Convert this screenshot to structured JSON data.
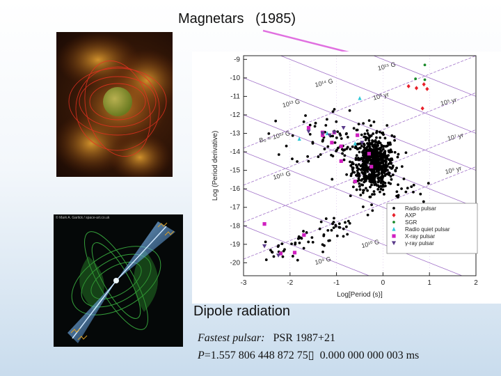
{
  "slide": {
    "title": "Magnetars   (1985)",
    "caption": "Dipole radiation",
    "fastest_label": "Fastest pulsar:",
    "fastest_name": "PSR 1987+21",
    "period_symbol": "P",
    "period_value": "=1.557 806 448 872 75▯",
    "period_error": "0.000 000 000 003 ms",
    "image_credit": "© Mark A. Garlick / space-art.co.uk"
  },
  "chart_data": {
    "type": "scatter",
    "xlabel": "Log[Period (s)]",
    "ylabel": "Log (Period derivative)",
    "xlim": [
      -3,
      2
    ],
    "ylim": [
      -20.7,
      -8.8
    ],
    "x_ticks": [
      "-3",
      "-2",
      "-1",
      "0",
      "1",
      "2"
    ],
    "y_ticks": [
      "-9",
      "-10",
      "-11",
      "-12",
      "-13",
      "-14",
      "-15",
      "-16",
      "-17",
      "-18",
      "-19",
      "-20"
    ],
    "field_lines": [
      {
        "label": "10¹⁵ G",
        "log_B": 15
      },
      {
        "label": "10¹⁴ G",
        "log_B": 14
      },
      {
        "label": "10¹³ G",
        "log_B": 13
      },
      {
        "label": "B₀ = 10¹² G",
        "log_B": 12
      },
      {
        "label": "10¹¹ G",
        "log_B": 11
      },
      {
        "label": "10¹⁰ G",
        "log_B": 10
      },
      {
        "label": "10⁹ G",
        "log_B": 9
      }
    ],
    "age_lines": [
      {
        "label": "10³ yr",
        "log_age": 3
      },
      {
        "label": "10⁵ yr",
        "log_age": 5
      },
      {
        "label": "10⁷ yr",
        "log_age": 7
      },
      {
        "label": "10⁹ yr",
        "log_age": 9
      }
    ],
    "legend_position": "lower-right",
    "series": [
      {
        "name": "Radio pulsar",
        "color": "#000000",
        "marker": "circle",
        "cluster": {
          "x_mean": -0.2,
          "x_sd": 0.22,
          "y_mean": -14.6,
          "y_sd": 0.7,
          "count": 650
        }
      },
      {
        "name": "AXP",
        "color": "#e8202a",
        "marker": "diamond",
        "points": [
          [
            0.55,
            -10.45
          ],
          [
            0.72,
            -10.55
          ],
          [
            0.95,
            -10.6
          ],
          [
            0.88,
            -10.35
          ],
          [
            0.85,
            -11.65
          ]
        ]
      },
      {
        "name": "SGR",
        "color": "#1a8a2a",
        "marker": "circle",
        "points": [
          [
            0.9,
            -9.3
          ],
          [
            0.7,
            -10.05
          ],
          [
            0.9,
            -10.1
          ]
        ]
      },
      {
        "name": "Radio quiet pulsar",
        "color": "#30c8d8",
        "marker": "triangle",
        "points": [
          [
            -0.5,
            -11.1
          ],
          [
            -1.8,
            -13.3
          ],
          [
            -0.6,
            -13.55
          ],
          [
            -1.2,
            -13.0
          ]
        ]
      },
      {
        "name": "X-ray pulsar",
        "color": "#d020c0",
        "marker": "square",
        "points": [
          [
            -1.6,
            -12.7
          ],
          [
            -1.3,
            -13.1
          ],
          [
            -0.55,
            -13.1
          ],
          [
            -0.3,
            -14.1
          ],
          [
            -0.6,
            -15.6
          ],
          [
            -0.9,
            -13.7
          ],
          [
            -1.3,
            -12.95
          ],
          [
            -1.05,
            -12.95
          ],
          [
            -2.55,
            -17.9
          ],
          [
            -2.2,
            -19.5
          ],
          [
            -1.9,
            -19.45
          ],
          [
            -1.7,
            -18.5
          ],
          [
            -1.1,
            -13.5
          ],
          [
            -0.9,
            -14.5
          ],
          [
            -0.25,
            -14.8
          ]
        ]
      },
      {
        "name": "γ-ray pulsar",
        "color": "#5a3a8a",
        "marker": "triangle-down",
        "points": [
          [
            -0.85,
            -12.7
          ],
          [
            -1.6,
            -12.9
          ],
          [
            -1.15,
            -13.1
          ],
          [
            -1.05,
            -12.95
          ],
          [
            -0.45,
            -13.5
          ],
          [
            -1.3,
            -13.0
          ],
          [
            -2.55,
            -19.1
          ],
          [
            -2.25,
            -19.6
          ]
        ]
      }
    ]
  }
}
